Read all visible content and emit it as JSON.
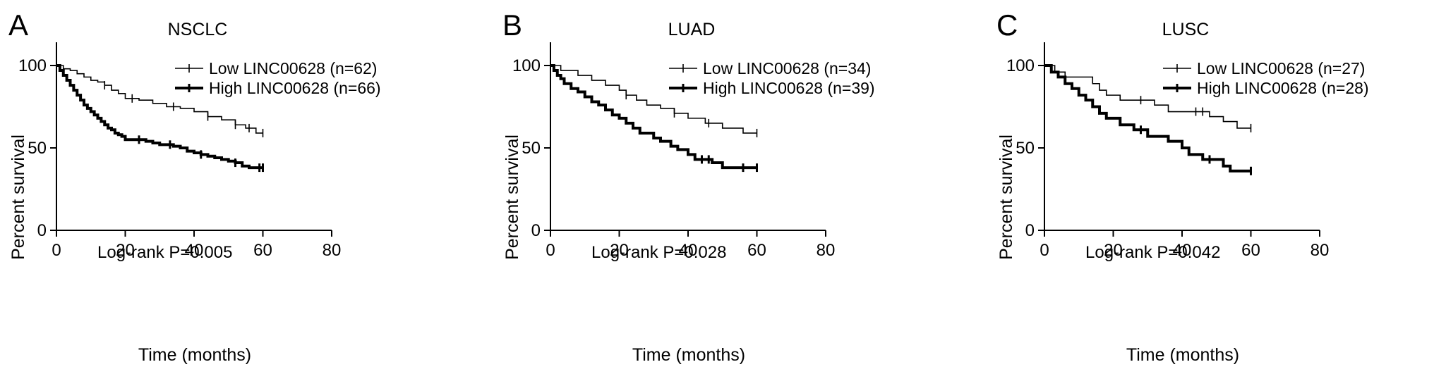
{
  "chart_data": [
    {
      "type": "line",
      "panel_label": "A",
      "title": "NSCLC",
      "xlabel": "Time (months)",
      "ylabel": "Percent survival",
      "xlim": [
        0,
        80
      ],
      "ylim": [
        0,
        100
      ],
      "xticks": [
        0,
        20,
        40,
        60,
        80
      ],
      "yticks": [
        0,
        50,
        100
      ],
      "legend_position": "top-right",
      "annotation": "Log-rank P=0.005",
      "series": [
        {
          "name": "Low LINC00628 (n=62)",
          "style": "thin",
          "x": [
            0,
            2,
            4,
            6,
            8,
            10,
            12,
            14,
            16,
            18,
            20,
            24,
            28,
            32,
            36,
            40,
            44,
            48,
            52,
            55,
            58,
            60
          ],
          "values": [
            100,
            98,
            97,
            95,
            93,
            91,
            90,
            88,
            85,
            83,
            80,
            79,
            77,
            75,
            74,
            72,
            69,
            67,
            64,
            62,
            59,
            59
          ],
          "censor_x": [
            14,
            22,
            34,
            44,
            52,
            56,
            60
          ]
        },
        {
          "name": "High LINC00628 (n=66)",
          "style": "thick",
          "x": [
            0,
            1,
            2,
            3,
            4,
            5,
            6,
            7,
            8,
            9,
            10,
            11,
            12,
            13,
            14,
            15,
            16,
            17,
            18,
            19,
            20,
            22,
            24,
            26,
            28,
            30,
            32,
            34,
            36,
            38,
            40,
            42,
            44,
            46,
            48,
            50,
            52,
            54,
            56,
            58,
            60
          ],
          "values": [
            100,
            97,
            94,
            91,
            88,
            85,
            82,
            79,
            76,
            74,
            72,
            70,
            68,
            66,
            64,
            62,
            61,
            59,
            58,
            57,
            55,
            55,
            55,
            54,
            53,
            52,
            52,
            51,
            50,
            48,
            47,
            46,
            45,
            44,
            43,
            42,
            41,
            39,
            38,
            38,
            38
          ],
          "censor_x": [
            24,
            33,
            42,
            52,
            59,
            60
          ]
        }
      ]
    },
    {
      "type": "line",
      "panel_label": "B",
      "title": "LUAD",
      "xlabel": "Time (months)",
      "ylabel": "Percent survival",
      "xlim": [
        0,
        80
      ],
      "ylim": [
        0,
        100
      ],
      "xticks": [
        0,
        20,
        40,
        60,
        80
      ],
      "yticks": [
        0,
        50,
        100
      ],
      "legend_position": "top-right",
      "annotation": "Log-rank P=0.028",
      "series": [
        {
          "name": "Low LINC00628 (n=34)",
          "style": "thin",
          "x": [
            0,
            3,
            8,
            12,
            16,
            20,
            22,
            25,
            28,
            32,
            36,
            40,
            45,
            50,
            56,
            60
          ],
          "values": [
            100,
            97,
            94,
            91,
            88,
            85,
            82,
            79,
            76,
            74,
            71,
            68,
            65,
            62,
            59,
            59
          ],
          "censor_x": [
            22,
            36,
            46,
            60
          ]
        },
        {
          "name": "High LINC00628 (n=39)",
          "style": "thick",
          "x": [
            0,
            1,
            2,
            3,
            4,
            6,
            8,
            10,
            12,
            14,
            16,
            18,
            20,
            22,
            24,
            26,
            30,
            32,
            35,
            37,
            40,
            42,
            45,
            47,
            50,
            55,
            60
          ],
          "values": [
            100,
            97,
            94,
            92,
            89,
            86,
            84,
            81,
            78,
            76,
            73,
            70,
            68,
            65,
            62,
            59,
            56,
            54,
            51,
            49,
            46,
            43,
            43,
            41,
            38,
            38,
            38
          ],
          "censor_x": [
            44,
            46,
            56,
            60
          ]
        }
      ]
    },
    {
      "type": "line",
      "panel_label": "C",
      "title": "LUSC",
      "xlabel": "Time (months)",
      "ylabel": "Percent survival",
      "xlim": [
        0,
        80
      ],
      "ylim": [
        0,
        100
      ],
      "xticks": [
        0,
        20,
        40,
        60,
        80
      ],
      "yticks": [
        0,
        50,
        100
      ],
      "legend_position": "top-right",
      "annotation": "Log-rank P=0.042",
      "series": [
        {
          "name": "Low LINC00628 (n=27)",
          "style": "thin",
          "x": [
            0,
            3,
            6,
            14,
            16,
            18,
            22,
            30,
            32,
            36,
            48,
            52,
            56,
            60
          ],
          "values": [
            100,
            96,
            93,
            89,
            85,
            82,
            79,
            79,
            76,
            72,
            69,
            66,
            62,
            62
          ],
          "censor_x": [
            28,
            44,
            46,
            60
          ]
        },
        {
          "name": "High LINC00628 (n=28)",
          "style": "thick",
          "x": [
            0,
            2,
            4,
            6,
            8,
            10,
            12,
            14,
            16,
            18,
            22,
            26,
            30,
            36,
            38,
            40,
            42,
            46,
            52,
            54,
            60
          ],
          "values": [
            100,
            96,
            93,
            89,
            86,
            82,
            79,
            75,
            71,
            68,
            64,
            61,
            57,
            54,
            54,
            50,
            46,
            43,
            39,
            36,
            36
          ],
          "censor_x": [
            28,
            48,
            60
          ]
        }
      ]
    }
  ]
}
